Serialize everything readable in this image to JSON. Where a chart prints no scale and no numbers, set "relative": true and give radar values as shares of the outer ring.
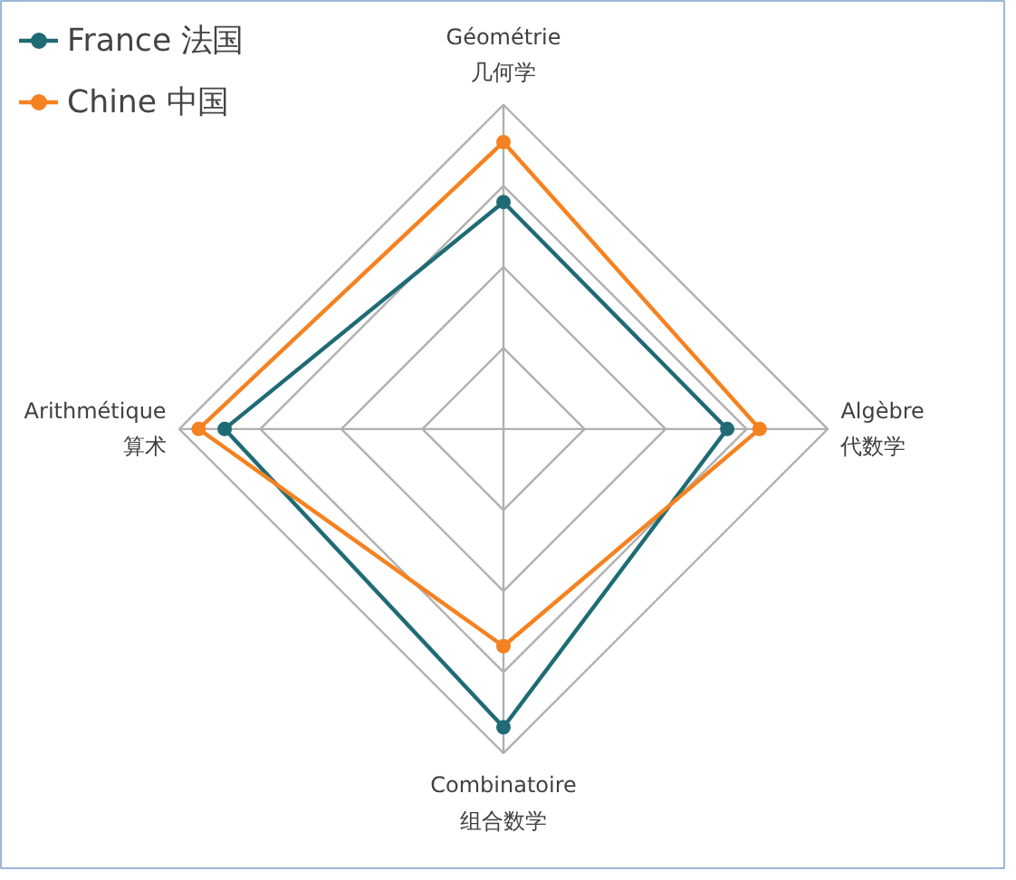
{
  "chart_data": {
    "type": "radar",
    "relative": true,
    "categories": [
      "Géométrie\n几何学",
      "Algèbre\n代数学",
      "Combinatoire\n组合数学",
      "Arithmétique\n算术"
    ],
    "series": [
      {
        "name": "France 法国",
        "color": "#1f6b75",
        "values": [
          0.7,
          0.69,
          0.92,
          0.86
        ]
      },
      {
        "name": "Chine 中国",
        "color": "#f58220",
        "values": [
          0.885,
          0.79,
          0.67,
          0.94
        ]
      }
    ],
    "legend": "top left",
    "marker": "circle"
  }
}
